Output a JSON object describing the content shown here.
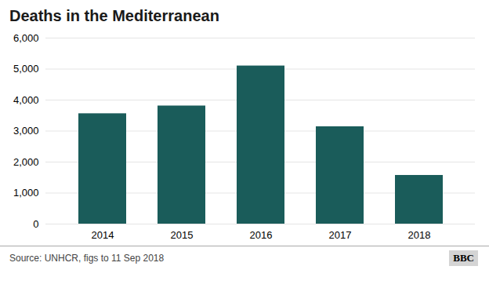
{
  "chart_data": {
    "type": "bar",
    "title": "Deaths in the Mediterranean",
    "categories": [
      "2014",
      "2015",
      "2016",
      "2017",
      "2018"
    ],
    "values": [
      3560,
      3810,
      5100,
      3140,
      1570
    ],
    "color": "#1a5c5a",
    "ylim": [
      0,
      6000
    ],
    "yticks": [
      0,
      {
        "value": 1000,
        "label": "1,000"
      },
      {
        "value": 2000,
        "label": "2,000"
      },
      {
        "value": 3000,
        "label": "3,000"
      },
      {
        "value": 4000,
        "label": "4,000"
      },
      {
        "value": 5000,
        "label": "5,000"
      },
      {
        "value": 6000,
        "label": "6,000"
      }
    ],
    "grid": true,
    "caption": "Source: UNHCR, figs to 11 Sep 2018",
    "annotations": [
      "BBC"
    ]
  }
}
